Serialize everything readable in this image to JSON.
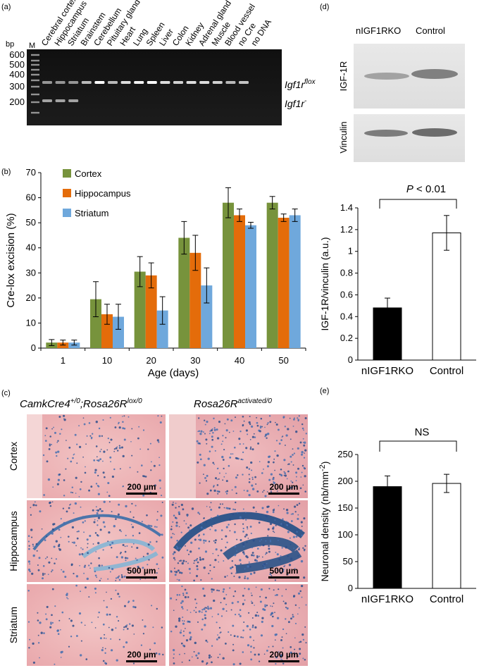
{
  "panels": {
    "a": {
      "label": "(a)",
      "unit": "bp",
      "ladder_label": "M",
      "ladder_sizes": [
        "600",
        "500",
        "400",
        "300",
        "200"
      ],
      "lanes": [
        "Cerebral cortex",
        "Hippocampus",
        "Striatum",
        "Brainstem",
        "Cerebellum",
        "Pituitary gland",
        "Heart",
        "Lung",
        "Spleen",
        "Liver",
        "Colon",
        "Kidney",
        "Adrenal gland",
        "Muscle",
        "Blood vessel",
        "no Cre",
        "no DNA"
      ],
      "band_flox_gene": "Igf1r",
      "band_flox_sup": "flox",
      "band_del_gene": "Igf1r",
      "band_del_sup": "-"
    },
    "b": {
      "label": "(b)"
    },
    "c": {
      "label": "(c)",
      "col1_gene1": "CamkCre4",
      "col1_sup1": "+/0",
      "col1_sep": ";",
      "col1_gene2": "Rosa26R",
      "col1_sup2": "lox/0",
      "col2_gene": "Rosa26R",
      "col2_sup": "activated/0",
      "rows": [
        "Cortex",
        "Hippocampus",
        "Striatum"
      ],
      "scalebars": [
        "200 µm",
        "200 µm",
        "500 µm",
        "500 µm",
        "200 µm",
        "200 µm"
      ]
    },
    "d": {
      "label": "(d)",
      "blot_cols": [
        "nIGF1RKO",
        "Control"
      ],
      "blot_rows": [
        "IGF-1R",
        "Vinculin"
      ],
      "sig_p": "P",
      "sig_rest": " < 0.01"
    },
    "e": {
      "label": "(e)",
      "sig": "NS"
    }
  },
  "chart_data": [
    {
      "type": "bar",
      "panel": "b",
      "title": "",
      "xlabel": "Age (days)",
      "ylabel": "Cre-lox excision (%)",
      "categories": [
        "1",
        "10",
        "20",
        "30",
        "40",
        "50"
      ],
      "ylim": [
        0,
        70
      ],
      "yticks": [
        0,
        10,
        20,
        30,
        40,
        50,
        60,
        70
      ],
      "legend": "top-left",
      "grid": false,
      "series": [
        {
          "name": "Cortex",
          "color": "#77933C",
          "values": [
            2.2,
            19.5,
            30.5,
            44,
            58,
            58
          ],
          "errors": [
            1.2,
            7,
            6,
            6.5,
            6,
            2.5
          ]
        },
        {
          "name": "Hippocampus",
          "color": "#E46C0A",
          "values": [
            2.2,
            13.5,
            29,
            38,
            53,
            52
          ],
          "errors": [
            1,
            4,
            5,
            7,
            2.5,
            1.5
          ]
        },
        {
          "name": "Striatum",
          "color": "#6FA8DC",
          "values": [
            2.2,
            12.5,
            15,
            25,
            49,
            53
          ],
          "errors": [
            1,
            5,
            5.5,
            7,
            1.2,
            2.5
          ]
        }
      ]
    },
    {
      "type": "bar",
      "panel": "d",
      "title": "",
      "xlabel": "",
      "ylabel": "IGF-1R/vinculin (a.u.)",
      "categories": [
        "nIGF1RKO",
        "Control"
      ],
      "ylim": [
        0,
        1.4
      ],
      "yticks": [
        "0",
        "0.2",
        "0.4",
        "0.6",
        "0.8",
        "1",
        "1.2",
        "1.4"
      ],
      "grid": false,
      "series": [
        {
          "values": [
            0.48,
            1.17
          ],
          "errors": [
            0.09,
            0.16
          ],
          "fills": [
            "#000000",
            "#FFFFFF"
          ]
        }
      ]
    },
    {
      "type": "bar",
      "panel": "e",
      "title": "",
      "xlabel": "",
      "ylabel": "Neuronal density (nb/mm",
      "ylabel_sup": "-2",
      "ylabel_end": ")",
      "categories": [
        "nIGF1RKO",
        "Control"
      ],
      "ylim": [
        0,
        250
      ],
      "yticks": [
        "0",
        "50",
        "100",
        "150",
        "200",
        "250"
      ],
      "grid": false,
      "series": [
        {
          "values": [
            190,
            196
          ],
          "errors": [
            20,
            17
          ],
          "fills": [
            "#000000",
            "#FFFFFF"
          ]
        }
      ]
    }
  ]
}
